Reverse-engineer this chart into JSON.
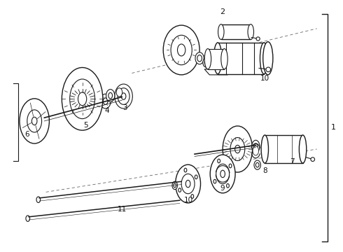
{
  "bg_color": "#ffffff",
  "line_color": "#1a1a1a",
  "label_color": "#111111",
  "dashed_color": "#666666",
  "fig_width": 4.9,
  "fig_height": 3.6,
  "dpi": 100
}
